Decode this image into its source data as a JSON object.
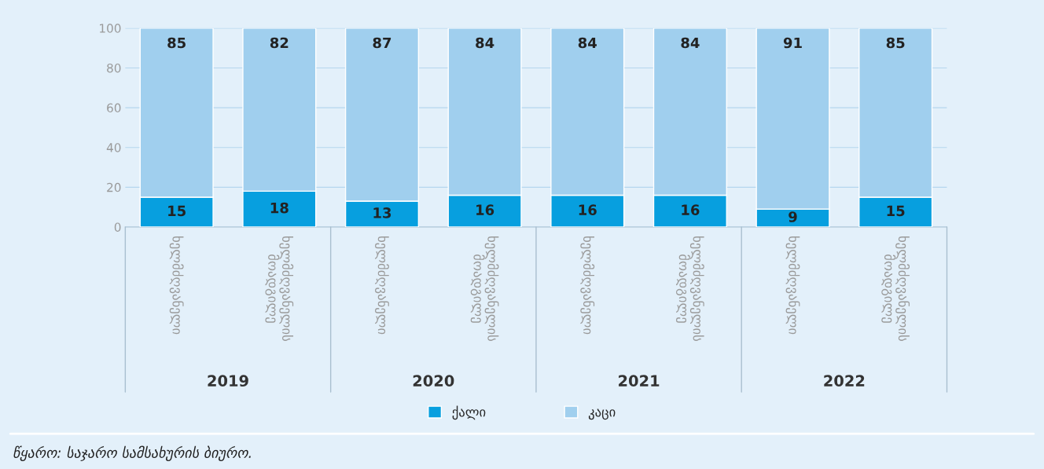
{
  "chart_data": {
    "type": "bar",
    "stacked": true,
    "categories": [
      "ხელმძღვანელი",
      "ხელმძღვანელის მოადგილე",
      "ხელმძღვანელი",
      "ხელმძღვანელის მოადგილე",
      "ხელმძღვანელი",
      "ხელმძღვანელის მოადგილე",
      "ხელმძღვანელი",
      "ხელმძღვანელის მოადგილე"
    ],
    "series": [
      {
        "name": "ქალი",
        "color": "#079fdf",
        "values": [
          15,
          18,
          13,
          16,
          16,
          16,
          9,
          15
        ]
      },
      {
        "name": "კაცი",
        "color": "#a0cfee",
        "values": [
          85,
          82,
          87,
          84,
          84,
          84,
          91,
          85
        ]
      }
    ],
    "ylim": [
      0,
      100
    ],
    "yticks": [
      0,
      20,
      40,
      60,
      80,
      100
    ],
    "grid": "y",
    "legend": "bottom",
    "data_labels": true,
    "annotations": [
      "2019",
      "2020",
      "2021",
      "2022",
      "წყარო: საჯარო სამსახურის ბიურო."
    ]
  }
}
